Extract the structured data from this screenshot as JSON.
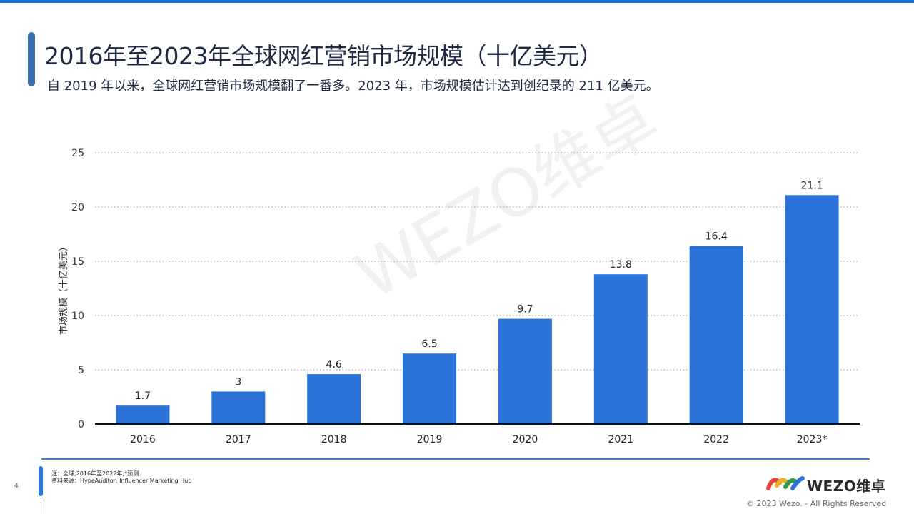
{
  "header": {
    "title": "2016年至2023年全球网红营销市场规模（十亿美元）",
    "subtitle": "自 2019 年以来，全球网红营销市场规模翻了一番多。2023 年，市场规模估计达到创纪录的 211 亿美元。"
  },
  "watermark": "WEZO维卓",
  "chart_data": {
    "type": "bar",
    "categories": [
      "2016",
      "2017",
      "2018",
      "2019",
      "2020",
      "2021",
      "2022",
      "2023*"
    ],
    "values": [
      1.7,
      3,
      4.6,
      6.5,
      9.7,
      13.8,
      16.4,
      21.1
    ],
    "value_labels": [
      "1.7",
      "3",
      "4.6",
      "6.5",
      "9.7",
      "13.8",
      "16.4",
      "21.1"
    ],
    "ylabel": "市场规模（十亿美元）",
    "xlabel": "",
    "ylim": [
      0,
      25
    ],
    "yticks": [
      0,
      5,
      10,
      15,
      20,
      25
    ],
    "grid": "dotted horizontal",
    "bar_color": "#2c73d9"
  },
  "footer": {
    "note": "注：全球;2016年至2022年;*预测",
    "source": "资料来源：HypeAuditor; Influencer Marketing Hub",
    "page_number": "4",
    "logo_text": "WEZO维卓",
    "copyright": "© 2023 Wezo. - All Rights Reserved"
  },
  "colors": {
    "accent": "#1f6fd6",
    "title": "#1f2a44"
  }
}
